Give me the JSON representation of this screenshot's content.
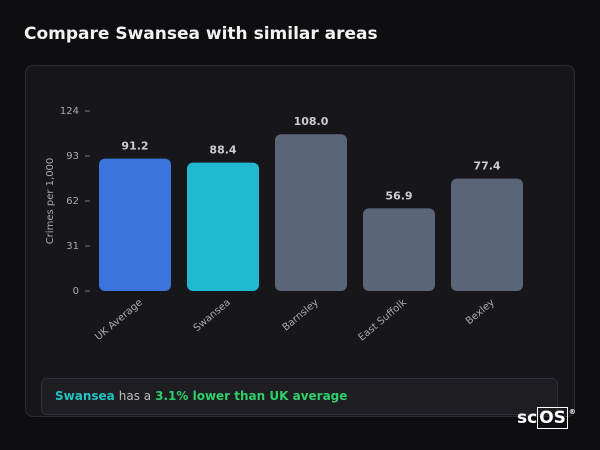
{
  "page_title": "Compare Swansea with similar areas",
  "chart_data": {
    "type": "bar",
    "y_label": "Crimes per 1,000",
    "categories": [
      "UK Average",
      "Swansea",
      "Barnsley",
      "East Suffolk",
      "Bexley"
    ],
    "values": [
      91.2,
      88.4,
      108.0,
      56.9,
      77.4
    ],
    "value_labels": [
      "91.2",
      "88.4",
      "108.0",
      "56.9",
      "77.4"
    ],
    "colors": [
      "#3b74dc",
      "#20b9d0",
      "#5b6578",
      "#5b6578",
      "#5b6578"
    ],
    "ylim": [
      0,
      124
    ],
    "yticks": [
      0,
      31,
      62,
      93,
      124
    ],
    "grid": false
  },
  "summary": {
    "area": "Swansea",
    "middle": "has a",
    "result": "3.1% lower than UK average"
  },
  "logo": {
    "prefix": "sc",
    "boxed": "OS",
    "mark": "®"
  }
}
